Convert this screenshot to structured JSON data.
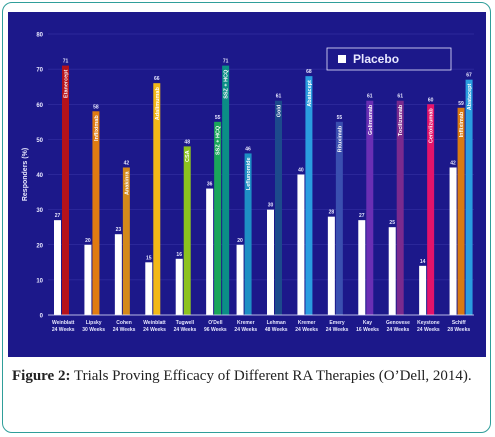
{
  "figure": {
    "caption_label": "Figure 2:",
    "caption_text": "Trials Proving Efficacy of Different RA Therapies (O’Dell, 2014)."
  },
  "colors": {
    "background": "#1c188a",
    "placebo": "#ffffff",
    "grid": "#3a36a8",
    "label": "#e8e8ff"
  },
  "chart_data": {
    "type": "bar",
    "ylabel": "Responders (%)",
    "ylim": [
      0,
      80
    ],
    "yticks": [
      0,
      10,
      20,
      30,
      40,
      50,
      60,
      70,
      80
    ],
    "legend": {
      "label": "Placebo",
      "placement": "top-right"
    },
    "categories": [
      {
        "name": "Weinblatt",
        "sub": "24 Weeks"
      },
      {
        "name": "Lipsky",
        "sub": "30 Weeks"
      },
      {
        "name": "Cohen",
        "sub": "24 Weeks"
      },
      {
        "name": "Weinblatt",
        "sub": "24 Weeks"
      },
      {
        "name": "Tugwell",
        "sub": "24 Weeks"
      },
      {
        "name": "O'Dell",
        "sub": "96 Weeks"
      },
      {
        "name": "Kremer",
        "sub": "24 Weeks"
      },
      {
        "name": "Lehman",
        "sub": "48 Weeks"
      },
      {
        "name": "Kremer",
        "sub": "24 Weeks"
      },
      {
        "name": "Emery",
        "sub": "24 Weeks"
      },
      {
        "name": "Kay",
        "sub": "16 Weeks"
      },
      {
        "name": "Genovese",
        "sub": "24 Weeks"
      },
      {
        "name": "Keystone",
        "sub": "24 Weeks"
      },
      {
        "name": "Schiff",
        "sub": "28 Weeks"
      }
    ],
    "groups": [
      {
        "placebo": 27,
        "treatments": [
          {
            "name": "Etanercept",
            "value": 71,
            "color": "#b5121b"
          }
        ]
      },
      {
        "placebo": 20,
        "treatments": [
          {
            "name": "Infliximab",
            "value": 58,
            "color": "#e07b12"
          }
        ]
      },
      {
        "placebo": 23,
        "treatments": [
          {
            "name": "Anakinra",
            "value": 42,
            "color": "#d4891a"
          }
        ]
      },
      {
        "placebo": 15,
        "treatments": [
          {
            "name": "Adalimumab",
            "value": 66,
            "color": "#f2b818"
          }
        ]
      },
      {
        "placebo": 16,
        "treatments": [
          {
            "name": "CSA",
            "value": 48,
            "color": "#8dc21f"
          }
        ]
      },
      {
        "placebo": 36,
        "treatments": [
          {
            "name": "SSZ + HCQ",
            "value": 55,
            "color": "#1aa65a"
          },
          {
            "name": "SSZ + HCQ",
            "value": 71,
            "color": "#0b8e86"
          }
        ]
      },
      {
        "placebo": 20,
        "treatments": [
          {
            "name": "Leflunomide",
            "value": 46,
            "color": "#1e8fc4"
          }
        ]
      },
      {
        "placebo": 30,
        "treatments": [
          {
            "name": "Gold",
            "value": 61,
            "color": "#1c4a8c"
          }
        ]
      },
      {
        "placebo": 40,
        "treatments": [
          {
            "name": "Abatacept",
            "value": 68,
            "color": "#2a9de0"
          }
        ]
      },
      {
        "placebo": 28,
        "treatments": [
          {
            "name": "Rituximab",
            "value": 55,
            "color": "#3a4fb0"
          }
        ]
      },
      {
        "placebo": 27,
        "treatments": [
          {
            "name": "Golimumab",
            "value": 61,
            "color": "#6a2fb4"
          }
        ]
      },
      {
        "placebo": 25,
        "treatments": [
          {
            "name": "Tocilizumab",
            "value": 61,
            "color": "#7a2a8e"
          }
        ]
      },
      {
        "placebo": 14,
        "treatments": [
          {
            "name": "Certolizumab",
            "value": 60,
            "color": "#e4136a"
          }
        ]
      },
      {
        "placebo": 42,
        "treatments": [
          {
            "name": "Infliximab",
            "value": 59,
            "color": "#d97a12"
          },
          {
            "name": "Abatacept",
            "value": 67,
            "color": "#2a9de0"
          }
        ]
      }
    ]
  }
}
